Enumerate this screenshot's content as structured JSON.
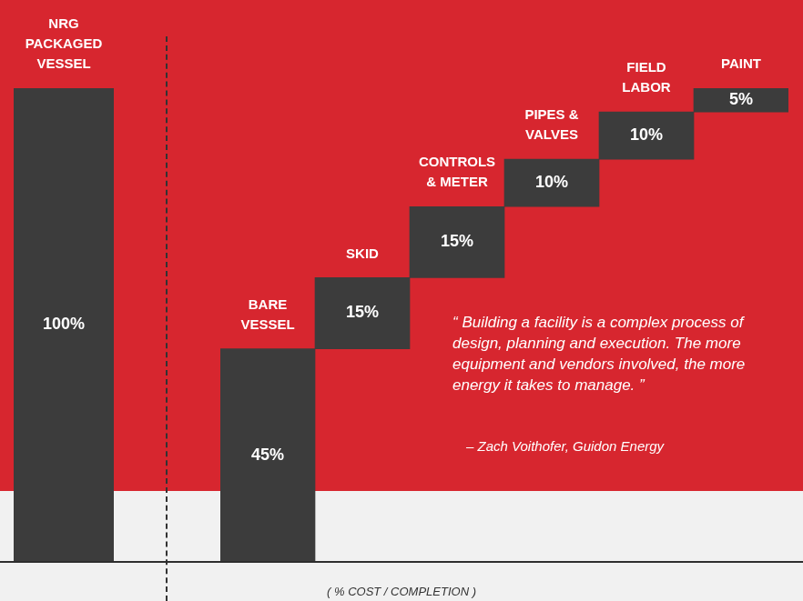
{
  "chart_data": [
    {
      "type": "bar",
      "categories": [
        "NRG PACKAGED VESSEL"
      ],
      "values": [
        100
      ],
      "value_labels": [
        "100%"
      ],
      "ylim": [
        0,
        100
      ],
      "color": "#3c3c3c",
      "data_labels": true,
      "grid": false
    },
    {
      "type": "waterfall",
      "categories": [
        "BARE VESSEL",
        "SKID",
        "CONTROLS & METER",
        "PIPES & VALVES",
        "FIELD LABOR",
        "PAINT"
      ],
      "values": [
        45,
        15,
        15,
        10,
        10,
        5
      ],
      "value_labels": [
        "45%",
        "15%",
        "15%",
        "10%",
        "10%",
        "5%"
      ],
      "ylim": [
        0,
        100
      ],
      "color": "#3c3c3c",
      "data_labels": true,
      "grid": false,
      "xlabel": "( % COST / COMPLETION )",
      "annotations": [
        {
          "text": "“ Building a facility is a complex process of design, planning and execution. The more equipment and vendors involved, the more energy it takes to manage. ”"
        },
        {
          "text": "– Zach Voithofer, Guidon Energy"
        }
      ]
    }
  ]
}
